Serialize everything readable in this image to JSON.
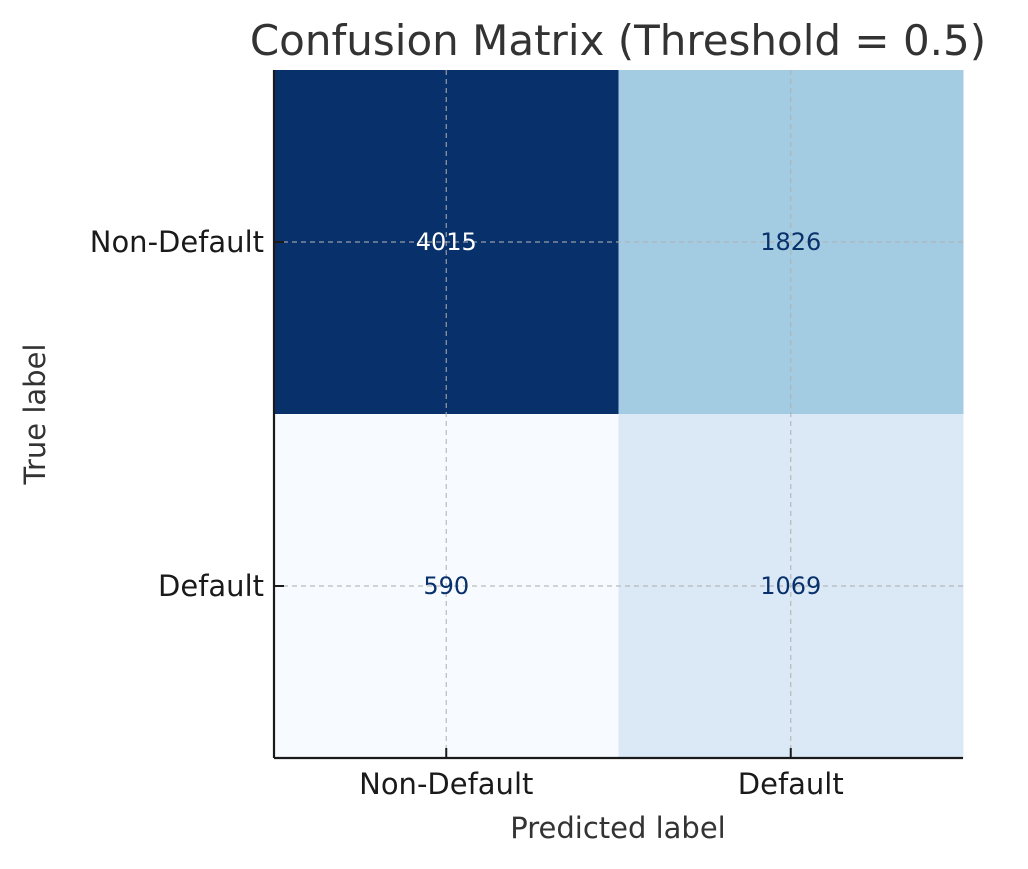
{
  "chart_data": {
    "type": "heatmap",
    "title": "Confusion Matrix (Threshold = 0.5)",
    "xlabel": "Predicted label",
    "ylabel": "True label",
    "x_categories": [
      "Non-Default",
      "Default"
    ],
    "y_categories": [
      "Non-Default",
      "Default"
    ],
    "values": [
      [
        4015,
        1826
      ],
      [
        590,
        1069
      ]
    ],
    "colormap": "Blues",
    "grid": true,
    "colorbar": false
  },
  "colors": {
    "low": "#f7fbff",
    "high": "#08306b",
    "text_dark": "#08306b",
    "text_light": "#ffffff"
  }
}
